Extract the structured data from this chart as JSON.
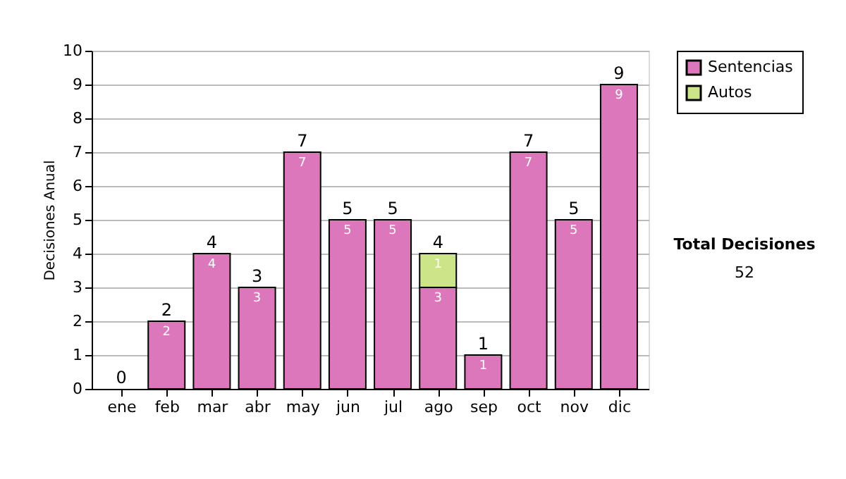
{
  "chart_data": {
    "type": "bar",
    "stacked": true,
    "ylabel": "Decisiones Anual",
    "categories": [
      "ene",
      "feb",
      "mar",
      "abr",
      "may",
      "jun",
      "jul",
      "ago",
      "sep",
      "oct",
      "nov",
      "dic"
    ],
    "series": [
      {
        "name": "Sentencias",
        "color": "#dd77bb",
        "values": [
          0,
          2,
          4,
          3,
          7,
          5,
          5,
          3,
          1,
          7,
          5,
          9
        ],
        "value_labels": [
          null,
          "2",
          "4",
          "3",
          "7",
          "5",
          "5",
          "3",
          "1",
          "7",
          "5",
          "9"
        ]
      },
      {
        "name": "Autos",
        "color": "#cce588",
        "values": [
          0,
          0,
          0,
          0,
          0,
          0,
          0,
          1,
          0,
          0,
          0,
          0
        ],
        "value_labels": [
          null,
          null,
          null,
          null,
          null,
          null,
          null,
          "1",
          null,
          null,
          null,
          null
        ]
      }
    ],
    "totals": [
      "0",
      "2",
      "4",
      "3",
      "7",
      "5",
      "5",
      "4",
      "1",
      "7",
      "5",
      "9"
    ],
    "ylim": [
      0,
      10
    ],
    "yticks": [
      0,
      1,
      2,
      3,
      4,
      5,
      6,
      7,
      8,
      9,
      10
    ],
    "grid": "y",
    "legend": "right",
    "annotations": [
      "Total Decisiones",
      "52"
    ]
  }
}
